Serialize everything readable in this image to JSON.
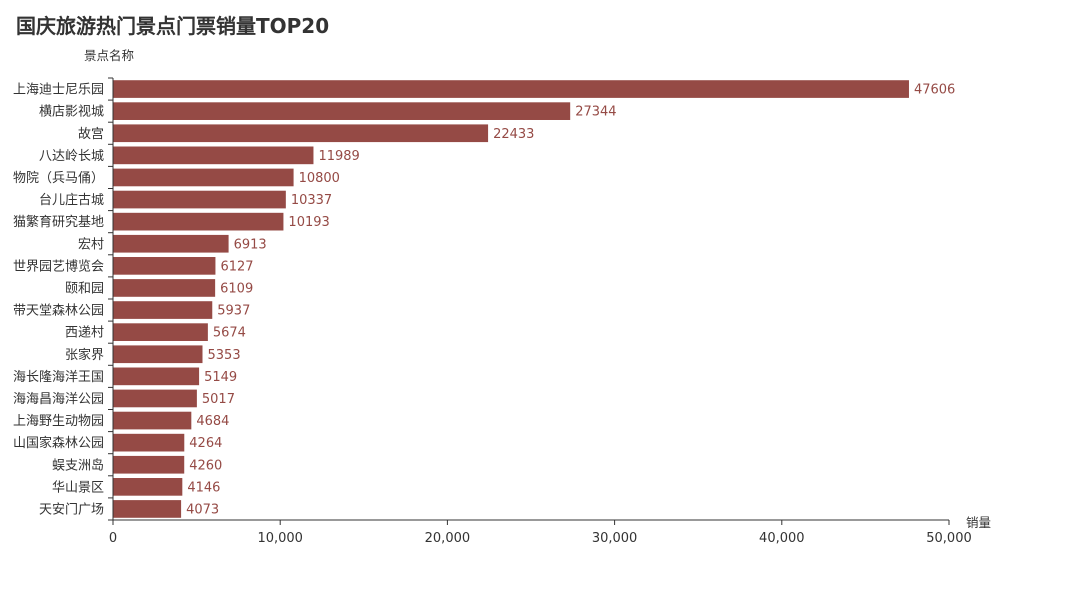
{
  "chart_data": {
    "type": "bar",
    "orientation": "horizontal",
    "title": "国庆旅游热门景点门票销量TOP20",
    "ylabel": "景点名称",
    "xlabel": "销量",
    "xlim": [
      0,
      50000
    ],
    "xticks": [
      0,
      10000,
      20000,
      30000,
      40000,
      50000
    ],
    "xtick_labels": [
      "0",
      "10,000",
      "20,000",
      "30,000",
      "40,000",
      "50,000"
    ],
    "grid": false,
    "legend": "none",
    "bar_color": "#954a45",
    "label_color": "#954a45",
    "categories": [
      "上海迪士尼乐园",
      "横店影视城",
      "故宫",
      "八达岭长城",
      "物院（兵马俑）",
      "台儿庄古城",
      "猫繁育研究基地",
      "宏村",
      "世界园艺博览会",
      "颐和园",
      "带天堂森林公园",
      "西递村",
      "张家界",
      "海长隆海洋王国",
      "海海昌海洋公园",
      "上海野生动物园",
      "山国家森林公园",
      "蜈支洲岛",
      "华山景区",
      "天安门广场"
    ],
    "values": [
      47606,
      27344,
      22433,
      11989,
      10800,
      10337,
      10193,
      6913,
      6127,
      6109,
      5937,
      5674,
      5353,
      5149,
      5017,
      4684,
      4264,
      4260,
      4146,
      4073
    ]
  }
}
